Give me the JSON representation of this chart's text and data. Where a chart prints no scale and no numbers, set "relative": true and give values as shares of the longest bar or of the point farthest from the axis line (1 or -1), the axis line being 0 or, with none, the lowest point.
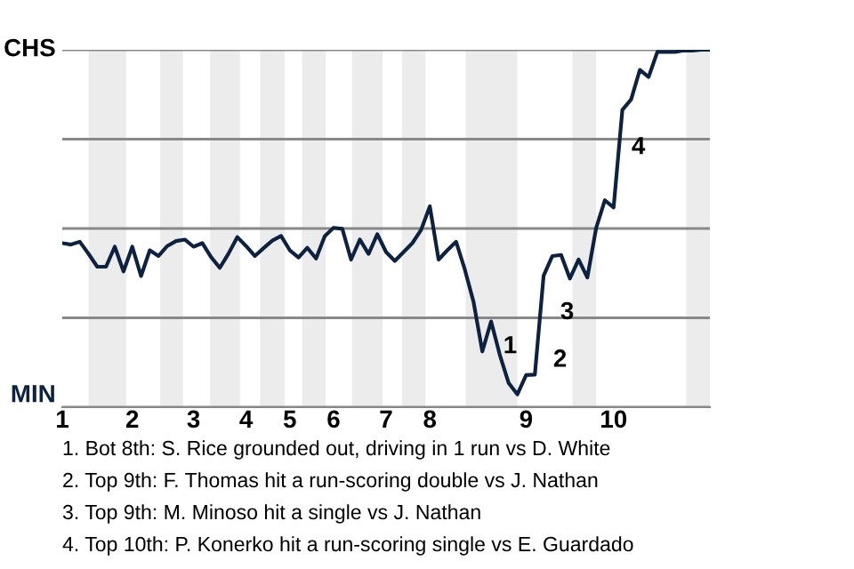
{
  "chart_data": {
    "type": "line",
    "relative": true,
    "categories": [
      "1",
      null,
      null,
      null,
      null,
      null,
      null,
      null,
      "2",
      null,
      null,
      null,
      null,
      null,
      null,
      "3",
      null,
      null,
      null,
      null,
      null,
      "4",
      null,
      null,
      null,
      null,
      "5",
      null,
      null,
      null,
      null,
      "6",
      null,
      null,
      null,
      null,
      null,
      "7",
      null,
      null,
      null,
      null,
      "8",
      null,
      null,
      null,
      null,
      null,
      null,
      null,
      null,
      null,
      null,
      "9",
      null,
      null,
      null,
      null,
      null,
      null,
      null,
      null,
      null,
      "10",
      null,
      null,
      null,
      null,
      null,
      null,
      null,
      null,
      null,
      null,
      null
    ],
    "series": [
      {
        "color": "#0d2240",
        "values": [
          0.459,
          0.455,
          0.463,
          0.429,
          0.393,
          0.393,
          0.449,
          0.38,
          0.449,
          0.367,
          0.439,
          0.423,
          0.451,
          0.465,
          0.469,
          0.449,
          0.459,
          0.42,
          0.39,
          0.43,
          0.476,
          0.451,
          0.423,
          0.445,
          0.466,
          0.479,
          0.439,
          0.419,
          0.446,
          0.416,
          0.479,
          0.502,
          0.499,
          0.413,
          0.469,
          0.429,
          0.484,
          0.434,
          0.409,
          0.434,
          0.459,
          0.496,
          0.562,
          0.413,
          0.439,
          0.463,
          0.385,
          0.294,
          0.156,
          0.24,
          0.146,
          0.068,
          0.036,
          0.09,
          0.091,
          0.368,
          0.423,
          0.426,
          0.36,
          0.413,
          0.363,
          0.501,
          0.579,
          0.559,
          0.832,
          0.861,
          0.944,
          0.924,
          0.994,
          0.994,
          0.994,
          0.998,
          0.998,
          1.0,
          1.0
        ]
      }
    ],
    "grid": "y",
    "line_style": "solid",
    "annotations": [
      "CHS",
      "MIN",
      "1",
      "2",
      "3",
      "4",
      "1. Bot 8th: S. Rice grounded out, driving in 1 run vs D. White",
      "2. Top 9th: F. Thomas hit a run-scoring double vs J. Nathan",
      "3. Top 9th: M. Minoso hit a single vs J. Nathan",
      "4. Top 10th: P. Konerko hit a run-scoring single vs E. Guardado"
    ]
  }
}
